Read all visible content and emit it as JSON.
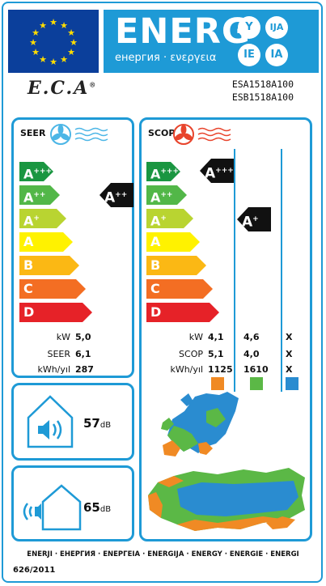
{
  "header": {
    "energ_word": "ENERG",
    "energ_subtitle": "енергия · ενεργεια",
    "lang_codes": [
      "Y",
      "IJA",
      "IE",
      "IA"
    ]
  },
  "brand": {
    "logo": "E.C.A",
    "registered": "®"
  },
  "models": [
    "ESA1518A100",
    "ESB1518A100"
  ],
  "seer": {
    "title": "SEER",
    "classes": [
      {
        "letter": "A",
        "sup": "+++",
        "color": "#1a9641"
      },
      {
        "letter": "A",
        "sup": "++",
        "color": "#52b748"
      },
      {
        "letter": "A",
        "sup": "+",
        "color": "#b9d431"
      },
      {
        "letter": "A",
        "sup": "",
        "color": "#fff200"
      },
      {
        "letter": "B",
        "sup": "",
        "color": "#fbb814"
      },
      {
        "letter": "C",
        "sup": "",
        "color": "#f36e23"
      },
      {
        "letter": "D",
        "sup": "",
        "color": "#e62228"
      }
    ],
    "rating": {
      "letter": "A",
      "sup": "++"
    },
    "rows": [
      {
        "label": "kW",
        "value": "5,0"
      },
      {
        "label": "SEER",
        "value": "6,1"
      },
      {
        "label": "kWh/yıl",
        "value": "287"
      }
    ]
  },
  "scop": {
    "title": "SCOP",
    "classes": [
      {
        "letter": "A",
        "sup": "+++",
        "color": "#1a9641"
      },
      {
        "letter": "A",
        "sup": "++",
        "color": "#52b748"
      },
      {
        "letter": "A",
        "sup": "+",
        "color": "#b9d431"
      },
      {
        "letter": "A",
        "sup": "",
        "color": "#fff200"
      },
      {
        "letter": "B",
        "sup": "",
        "color": "#fbb814"
      },
      {
        "letter": "C",
        "sup": "",
        "color": "#f36e23"
      },
      {
        "letter": "D",
        "sup": "",
        "color": "#e62228"
      }
    ],
    "rating_col1": {
      "letter": "A",
      "sup": "+++"
    },
    "rating_col2": {
      "letter": "A",
      "sup": "+"
    },
    "rows": [
      {
        "label": "kW",
        "values": [
          "4,1",
          "4,6",
          "X"
        ]
      },
      {
        "label": "SCOP",
        "values": [
          "5,1",
          "4,0",
          "X"
        ]
      },
      {
        "label": "kWh/yıl",
        "values": [
          "1125",
          "1610",
          "X"
        ]
      }
    ],
    "climate_colors": [
      "#f08a24",
      "#5bb846",
      "#2a8cd0"
    ]
  },
  "noise": {
    "indoor": {
      "value": "57",
      "unit": "dB"
    },
    "outdoor": {
      "value": "65",
      "unit": "dB"
    }
  },
  "footer": {
    "languages": "ENERJI · ЕНЕРГИЯ · ΕΝΕΡΓΕΙΑ · ENERGIJA · ENERGY · ENERGIE · ENERGI",
    "regulation": "626/2011"
  }
}
